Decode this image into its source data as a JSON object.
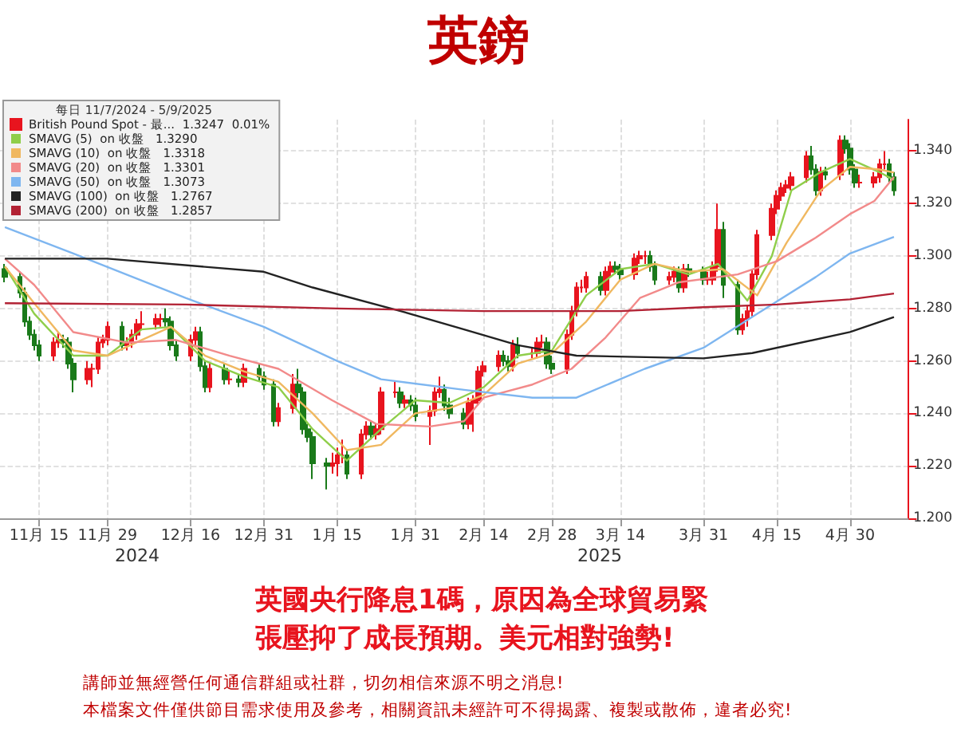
{
  "chart_data": {
    "type": "candlestick",
    "title": "英鎊",
    "legend_title": "每日 11/7/2024 - 5/9/2025",
    "legend": "top left",
    "grid": true,
    "marker": "none",
    "xlim": [
      "2024-11-07",
      "2025-05-12"
    ],
    "xticks": [
      {
        "value": "2024-11-15",
        "label": "11月 15"
      },
      {
        "value": "2024-11-29",
        "label": "11月 29"
      },
      {
        "value": "2024-12-16",
        "label": "12月 16"
      },
      {
        "value": "2024-12-31",
        "label": "12月 31"
      },
      {
        "value": "2025-01-15",
        "label": "1月 15"
      },
      {
        "value": "2025-01-31",
        "label": "1月 31"
      },
      {
        "value": "2025-02-14",
        "label": "2月 14"
      },
      {
        "value": "2025-02-28",
        "label": "2月 28"
      },
      {
        "value": "2025-03-14",
        "label": "3月 14"
      },
      {
        "value": "2025-03-31",
        "label": "3月 31"
      },
      {
        "value": "2025-04-15",
        "label": "4月 15"
      },
      {
        "value": "2025-04-30",
        "label": "4月 30"
      }
    ],
    "ylim": [
      1.2,
      1.352
    ],
    "yticks": [
      {
        "value": 1.2,
        "label": "1.200"
      },
      {
        "value": 1.22,
        "label": "1.220"
      },
      {
        "value": 1.24,
        "label": "1.240"
      },
      {
        "value": 1.26,
        "label": "1.260"
      },
      {
        "value": 1.28,
        "label": "1.280"
      },
      {
        "value": 1.3,
        "label": "1.300"
      },
      {
        "value": 1.32,
        "label": "1.320"
      },
      {
        "value": 1.34,
        "label": "1.340"
      }
    ],
    "annotations": [
      "2024",
      "2025",
      "英國央行降息1碼，原因為全球貿易緊",
      "張壓抑了成長預期。美元相對強勢!",
      "講師並無經營任何通信群組或社群，切勿相信來源不明之消息!",
      "本檔案文件僅供節目需求使用及參考，相關資訊未經許可不得揭露、複製或散佈，違者必究!"
    ],
    "series": [
      {
        "type": "candlestick",
        "name": "British Pound Spot - 最...  1.3247  0.01%",
        "color": "#e8141e",
        "colors": [
          "#1a7a1a",
          "#1a7a1a",
          "#1a7a1a",
          "#1a7a1a",
          "#1a7a1a",
          "#1a7a1a",
          "#e8141e",
          "#e8141e",
          "#1a7a1a",
          "#1a7a1a",
          "#1a7a1a",
          "#e8141e",
          "#e8141e",
          "#e8141e",
          "#e8141e",
          "#e8141e",
          "#1a7a1a",
          "#e8141e",
          "#e8141e",
          "#e8141e",
          "#e8141e",
          "#e8141e",
          "#e8141e",
          "#1a7a1a",
          "#1a7a1a",
          "#1a7a1a",
          "#e8141e",
          "#e8141e",
          "#1a7a1a",
          "#1a7a1a",
          "#e8141e",
          "#1a7a1a",
          "#e8141e",
          "#1a7a1a",
          "#e8141e",
          "#1a7a1a",
          "#1a7a1a",
          "#1a7a1a",
          "#e8141e",
          "#e8141e",
          "#1a7a1a",
          "#1a7a1a",
          "#1a7a1a",
          "#1a7a1a",
          "#1a7a1a",
          "#e8141e",
          "#e8141e",
          "#e8141e",
          "#1a7a1a",
          "#e8141e",
          "#e8141e",
          "#1a7a1a",
          "#e8141e",
          "#e8141e",
          "#e8141e",
          "#1a7a1a",
          "#e8141e",
          "#1a7a1a",
          "#1a7a1a",
          "#e8141e",
          "#e8141e",
          "#e8141e",
          "#1a7a1a",
          "#1a7a1a",
          "#1a7a1a",
          "#e8141e",
          "#e8141e",
          "#e8141e",
          "#e8141e",
          "#e8141e",
          "#1a7a1a",
          "#1a7a1a",
          "#e8141e",
          "#1a7a1a",
          "#e8141e",
          "#e8141e",
          "#e8141e",
          "#1a7a1a",
          "#1a7a1a",
          "#e8141e",
          "#e8141e",
          "#e8141e",
          "#e8141e",
          "#e8141e",
          "#1a7a1a",
          "#e8141e",
          "#e8141e",
          "#1a7a1a",
          "#1a7a1a",
          "#e8141e",
          "#e8141e",
          "#e8141e",
          "#1a7a1a",
          "#1a7a1a",
          "#e8141e",
          "#e8141e",
          "#1a7a1a",
          "#e8141e",
          "#1a7a1a",
          "#1a7a1a",
          "#e8141e",
          "#e8141e",
          "#e8141e",
          "#1a7a1a",
          "#1a7a1a",
          "#e8141e",
          "#e8141e",
          "#e8141e",
          "#e8141e",
          "#e8141e",
          "#e8141e",
          "#e8141e",
          "#e8141e",
          "#e8141e",
          "#e8141e",
          "#1a7a1a",
          "#1a7a1a",
          "#e8141e",
          "#1a7a1a",
          "#e8141e",
          "#1a7a1a",
          "#1a7a1a",
          "#1a7a1a",
          "#e8141e",
          "#e8141e",
          "#e8141e",
          "#e8141e",
          "#1a7a1a",
          "#1a7a1a"
        ],
        "x": [
          "2024-11-08",
          "2024-11-11",
          "2024-11-12",
          "2024-11-13",
          "2024-11-14",
          "2024-11-15",
          "2024-11-18",
          "2024-11-19",
          "2024-11-20",
          "2024-11-21",
          "2024-11-22",
          "2024-11-25",
          "2024-11-26",
          "2024-11-27",
          "2024-11-28",
          "2024-11-29",
          "2024-12-02",
          "2024-12-03",
          "2024-12-04",
          "2024-12-05",
          "2024-12-06",
          "2024-12-09",
          "2024-12-10",
          "2024-12-11",
          "2024-12-12",
          "2024-12-13",
          "2024-12-16",
          "2024-12-17",
          "2024-12-18",
          "2024-12-19",
          "2024-12-20",
          "2024-12-23",
          "2024-12-24",
          "2024-12-26",
          "2024-12-27",
          "2024-12-30",
          "2024-12-31",
          "2025-01-02",
          "2025-01-03",
          "2025-01-06",
          "2025-01-07",
          "2025-01-08",
          "2025-01-09",
          "2025-01-10",
          "2025-01-13",
          "2025-01-14",
          "2025-01-15",
          "2025-01-16",
          "2025-01-17",
          "2025-01-20",
          "2025-01-21",
          "2025-01-22",
          "2025-01-23",
          "2025-01-24",
          "2025-01-27",
          "2025-01-28",
          "2025-01-29",
          "2025-01-30",
          "2025-01-31",
          "2025-02-03",
          "2025-02-04",
          "2025-02-05",
          "2025-02-06",
          "2025-02-07",
          "2025-02-10",
          "2025-02-11",
          "2025-02-12",
          "2025-02-13",
          "2025-02-14",
          "2025-02-17",
          "2025-02-18",
          "2025-02-19",
          "2025-02-20",
          "2025-02-21",
          "2025-02-24",
          "2025-02-25",
          "2025-02-26",
          "2025-02-27",
          "2025-02-28",
          "2025-03-03",
          "2025-03-04",
          "2025-03-05",
          "2025-03-06",
          "2025-03-07",
          "2025-03-10",
          "2025-03-11",
          "2025-03-12",
          "2025-03-13",
          "2025-03-14",
          "2025-03-17",
          "2025-03-18",
          "2025-03-19",
          "2025-03-20",
          "2025-03-21",
          "2025-03-24",
          "2025-03-25",
          "2025-03-26",
          "2025-03-27",
          "2025-03-28",
          "2025-03-31",
          "2025-04-01",
          "2025-04-02",
          "2025-04-03",
          "2025-04-04",
          "2025-04-07",
          "2025-04-08",
          "2025-04-09",
          "2025-04-10",
          "2025-04-11",
          "2025-04-14",
          "2025-04-15",
          "2025-04-16",
          "2025-04-17",
          "2025-04-18",
          "2025-04-21",
          "2025-04-22",
          "2025-04-23",
          "2025-04-24",
          "2025-04-25",
          "2025-04-28",
          "2025-04-29",
          "2025-04-30",
          "2025-05-01",
          "2025-05-02",
          "2025-05-05",
          "2025-05-06",
          "2025-05-07",
          "2025-05-08",
          "2025-05-09"
        ],
        "ohlc": [
          [
            1.295,
            1.297,
            1.29,
            1.292
          ],
          [
            1.292,
            1.294,
            1.284,
            1.286
          ],
          [
            1.286,
            1.288,
            1.273,
            1.275
          ],
          [
            1.275,
            1.277,
            1.268,
            1.27
          ],
          [
            1.27,
            1.272,
            1.264,
            1.266
          ],
          [
            1.266,
            1.268,
            1.26,
            1.262
          ],
          [
            1.262,
            1.269,
            1.26,
            1.267
          ],
          [
            1.267,
            1.271,
            1.265,
            1.268
          ],
          [
            1.268,
            1.27,
            1.265,
            1.267
          ],
          [
            1.267,
            1.269,
            1.257,
            1.259
          ],
          [
            1.259,
            1.261,
            1.248,
            1.253
          ],
          [
            1.253,
            1.26,
            1.251,
            1.257
          ],
          [
            1.257,
            1.259,
            1.25,
            1.257
          ],
          [
            1.257,
            1.269,
            1.255,
            1.267
          ],
          [
            1.267,
            1.27,
            1.265,
            1.268
          ],
          [
            1.268,
            1.275,
            1.266,
            1.273
          ],
          [
            1.273,
            1.275,
            1.264,
            1.266
          ],
          [
            1.266,
            1.269,
            1.264,
            1.267
          ],
          [
            1.267,
            1.272,
            1.265,
            1.27
          ],
          [
            1.27,
            1.276,
            1.268,
            1.274
          ],
          [
            1.274,
            1.279,
            1.272,
            1.274
          ],
          [
            1.274,
            1.278,
            1.272,
            1.276
          ],
          [
            1.276,
            1.278,
            1.273,
            1.276
          ],
          [
            1.276,
            1.28,
            1.273,
            1.275
          ],
          [
            1.275,
            1.277,
            1.264,
            1.266
          ],
          [
            1.266,
            1.268,
            1.26,
            1.262
          ],
          [
            1.262,
            1.27,
            1.26,
            1.268
          ],
          [
            1.268,
            1.273,
            1.266,
            1.271
          ],
          [
            1.271,
            1.273,
            1.256,
            1.258
          ],
          [
            1.258,
            1.26,
            1.248,
            1.25
          ],
          [
            1.25,
            1.259,
            1.248,
            1.257
          ],
          [
            1.257,
            1.259,
            1.251,
            1.253
          ],
          [
            1.253,
            1.256,
            1.251,
            1.253
          ],
          [
            1.253,
            1.255,
            1.25,
            1.252
          ],
          [
            1.252,
            1.259,
            1.25,
            1.257
          ],
          [
            1.257,
            1.259,
            1.252,
            1.254
          ],
          [
            1.254,
            1.256,
            1.249,
            1.251
          ],
          [
            1.251,
            1.253,
            1.235,
            1.237
          ],
          [
            1.237,
            1.244,
            1.235,
            1.242
          ],
          [
            1.242,
            1.255,
            1.24,
            1.251
          ],
          [
            1.251,
            1.257,
            1.246,
            1.248
          ],
          [
            1.248,
            1.25,
            1.232,
            1.234
          ],
          [
            1.234,
            1.236,
            1.229,
            1.231
          ],
          [
            1.231,
            1.233,
            1.215,
            1.221
          ],
          [
            1.221,
            1.223,
            1.211,
            1.22
          ],
          [
            1.22,
            1.225,
            1.217,
            1.221
          ],
          [
            1.221,
            1.227,
            1.216,
            1.224
          ],
          [
            1.224,
            1.23,
            1.221,
            1.224
          ],
          [
            1.224,
            1.226,
            1.215,
            1.217
          ],
          [
            1.217,
            1.234,
            1.215,
            1.232
          ],
          [
            1.232,
            1.237,
            1.23,
            1.235
          ],
          [
            1.235,
            1.237,
            1.23,
            1.232
          ],
          [
            1.232,
            1.236,
            1.23,
            1.234
          ],
          [
            1.234,
            1.25,
            1.232,
            1.248
          ],
          [
            1.248,
            1.252,
            1.246,
            1.248
          ],
          [
            1.248,
            1.25,
            1.242,
            1.244
          ],
          [
            1.244,
            1.247,
            1.242,
            1.245
          ],
          [
            1.245,
            1.247,
            1.241,
            1.243
          ],
          [
            1.243,
            1.246,
            1.237,
            1.239
          ],
          [
            1.239,
            1.243,
            1.228,
            1.241
          ],
          [
            1.241,
            1.25,
            1.239,
            1.248
          ],
          [
            1.248,
            1.254,
            1.246,
            1.249
          ],
          [
            1.249,
            1.251,
            1.241,
            1.243
          ],
          [
            1.243,
            1.246,
            1.238,
            1.24
          ],
          [
            1.24,
            1.242,
            1.234,
            1.236
          ],
          [
            1.236,
            1.246,
            1.234,
            1.244
          ],
          [
            1.244,
            1.247,
            1.233,
            1.245
          ],
          [
            1.245,
            1.258,
            1.243,
            1.256
          ],
          [
            1.256,
            1.26,
            1.254,
            1.258
          ],
          [
            1.258,
            1.264,
            1.256,
            1.262
          ],
          [
            1.262,
            1.264,
            1.258,
            1.26
          ],
          [
            1.26,
            1.262,
            1.256,
            1.258
          ],
          [
            1.258,
            1.268,
            1.256,
            1.266
          ],
          [
            1.266,
            1.269,
            1.261,
            1.263
          ],
          [
            1.263,
            1.265,
            1.261,
            1.263
          ],
          [
            1.263,
            1.269,
            1.261,
            1.267
          ],
          [
            1.267,
            1.27,
            1.265,
            1.267
          ],
          [
            1.267,
            1.269,
            1.257,
            1.259
          ],
          [
            1.259,
            1.262,
            1.255,
            1.257
          ],
          [
            1.257,
            1.272,
            1.255,
            1.27
          ],
          [
            1.27,
            1.281,
            1.268,
            1.279
          ],
          [
            1.279,
            1.29,
            1.277,
            1.288
          ],
          [
            1.288,
            1.291,
            1.286,
            1.288
          ],
          [
            1.288,
            1.294,
            1.286,
            1.292
          ],
          [
            1.292,
            1.294,
            1.285,
            1.287
          ],
          [
            1.287,
            1.296,
            1.285,
            1.294
          ],
          [
            1.294,
            1.298,
            1.292,
            1.296
          ],
          [
            1.296,
            1.298,
            1.293,
            1.295
          ],
          [
            1.295,
            1.297,
            1.291,
            1.293
          ],
          [
            1.293,
            1.301,
            1.291,
            1.299
          ],
          [
            1.299,
            1.302,
            1.297,
            1.3
          ],
          [
            1.3,
            1.302,
            1.297,
            1.3
          ],
          [
            1.3,
            1.302,
            1.294,
            1.296
          ],
          [
            1.296,
            1.298,
            1.289,
            1.291
          ],
          [
            1.291,
            1.294,
            1.289,
            1.292
          ],
          [
            1.292,
            1.296,
            1.29,
            1.294
          ],
          [
            1.294,
            1.296,
            1.286,
            1.288
          ],
          [
            1.288,
            1.297,
            1.286,
            1.295
          ],
          [
            1.295,
            1.297,
            1.292,
            1.294
          ],
          [
            1.294,
            1.296,
            1.289,
            1.291
          ],
          [
            1.291,
            1.294,
            1.289,
            1.291
          ],
          [
            1.291,
            1.298,
            1.289,
            1.296
          ],
          [
            1.296,
            1.32,
            1.294,
            1.31
          ],
          [
            1.31,
            1.313,
            1.284,
            1.289
          ],
          [
            1.289,
            1.291,
            1.27,
            1.272
          ],
          [
            1.272,
            1.278,
            1.27,
            1.276
          ],
          [
            1.276,
            1.281,
            1.273,
            1.279
          ],
          [
            1.279,
            1.295,
            1.277,
            1.293
          ],
          [
            1.293,
            1.31,
            1.291,
            1.308
          ],
          [
            1.308,
            1.32,
            1.306,
            1.318
          ],
          [
            1.318,
            1.325,
            1.316,
            1.323
          ],
          [
            1.323,
            1.328,
            1.321,
            1.326
          ],
          [
            1.326,
            1.329,
            1.324,
            1.327
          ],
          [
            1.327,
            1.332,
            1.325,
            1.33
          ],
          [
            1.33,
            1.34,
            1.328,
            1.338
          ],
          [
            1.338,
            1.342,
            1.331,
            1.333
          ],
          [
            1.333,
            1.335,
            1.323,
            1.325
          ],
          [
            1.325,
            1.334,
            1.323,
            1.332
          ],
          [
            1.332,
            1.334,
            1.329,
            1.331
          ],
          [
            1.331,
            1.346,
            1.329,
            1.344
          ],
          [
            1.344,
            1.346,
            1.339,
            1.341
          ],
          [
            1.341,
            1.343,
            1.331,
            1.333
          ],
          [
            1.333,
            1.335,
            1.326,
            1.328
          ],
          [
            1.328,
            1.331,
            1.326,
            1.328
          ],
          [
            1.328,
            1.332,
            1.326,
            1.33
          ],
          [
            1.33,
            1.337,
            1.328,
            1.335
          ],
          [
            1.335,
            1.34,
            1.333,
            1.335
          ],
          [
            1.335,
            1.337,
            1.328,
            1.33
          ],
          [
            1.33,
            1.332,
            1.323,
            1.325
          ]
        ]
      },
      {
        "type": "line",
        "name": "SMAVG (5)  on 收盤   1.3290",
        "color": "#8fce4a",
        "x": [
          "2024-11-08",
          "2024-11-14",
          "2024-11-22",
          "2024-11-29",
          "2024-12-06",
          "2024-12-12",
          "2024-12-19",
          "2024-12-27",
          "2025-01-03",
          "2025-01-10",
          "2025-01-17",
          "2025-01-24",
          "2025-01-31",
          "2025-02-07",
          "2025-02-14",
          "2025-02-21",
          "2025-02-28",
          "2025-03-07",
          "2025-03-14",
          "2025-03-21",
          "2025-03-28",
          "2025-04-03",
          "2025-04-09",
          "2025-04-14",
          "2025-04-18",
          "2025-04-24",
          "2025-04-30",
          "2025-05-06",
          "2025-05-09"
        ],
        "values": [
          1.296,
          1.278,
          1.262,
          1.262,
          1.272,
          1.273,
          1.26,
          1.254,
          1.25,
          1.234,
          1.222,
          1.234,
          1.245,
          1.244,
          1.25,
          1.262,
          1.264,
          1.285,
          1.295,
          1.297,
          1.293,
          1.297,
          1.283,
          1.3,
          1.325,
          1.332,
          1.337,
          1.332,
          1.329
        ]
      },
      {
        "type": "line",
        "name": "SMAVG (10)  on 收盤   1.3318",
        "color": "#f0b860",
        "x": [
          "2024-11-08",
          "2024-11-14",
          "2024-11-22",
          "2024-11-29",
          "2024-12-06",
          "2024-12-12",
          "2024-12-19",
          "2024-12-27",
          "2025-01-03",
          "2025-01-10",
          "2025-01-17",
          "2025-01-24",
          "2025-01-31",
          "2025-02-07",
          "2025-02-14",
          "2025-02-21",
          "2025-02-28",
          "2025-03-07",
          "2025-03-14",
          "2025-03-21",
          "2025-03-28",
          "2025-04-04",
          "2025-04-11",
          "2025-04-17",
          "2025-04-24",
          "2025-04-30",
          "2025-05-06",
          "2025-05-09"
        ],
        "values": [
          1.296,
          1.282,
          1.264,
          1.262,
          1.268,
          1.273,
          1.262,
          1.256,
          1.252,
          1.24,
          1.226,
          1.228,
          1.24,
          1.242,
          1.247,
          1.259,
          1.263,
          1.275,
          1.291,
          1.297,
          1.294,
          1.295,
          1.285,
          1.305,
          1.325,
          1.334,
          1.333,
          1.3318
        ]
      },
      {
        "type": "line",
        "name": "SMAVG (20)  on 收盤   1.3301",
        "color": "#f28a8a",
        "x": [
          "2024-11-08",
          "2024-11-14",
          "2024-11-22",
          "2024-12-03",
          "2024-12-13",
          "2024-12-24",
          "2025-01-03",
          "2025-01-14",
          "2025-01-23",
          "2025-02-03",
          "2025-02-10",
          "2025-02-14",
          "2025-02-24",
          "2025-03-04",
          "2025-03-11",
          "2025-03-18",
          "2025-03-26",
          "2025-04-07",
          "2025-04-15",
          "2025-04-23",
          "2025-04-30",
          "2025-05-05",
          "2025-05-09"
        ],
        "values": [
          1.299,
          1.289,
          1.271,
          1.267,
          1.268,
          1.262,
          1.257,
          1.245,
          1.236,
          1.235,
          1.237,
          1.246,
          1.251,
          1.257,
          1.269,
          1.284,
          1.29,
          1.293,
          1.298,
          1.307,
          1.316,
          1.321,
          1.3301
        ]
      },
      {
        "type": "line",
        "name": "SMAVG (50)  on 收盤   1.3073",
        "color": "#7eb6f0",
        "x": [
          "2024-11-08",
          "2024-11-22",
          "2024-12-15",
          "2024-12-31",
          "2025-01-15",
          "2025-01-24",
          "2025-02-10",
          "2025-02-24",
          "2025-03-05",
          "2025-03-19",
          "2025-03-31",
          "2025-04-11",
          "2025-04-23",
          "2025-04-30",
          "2025-05-09"
        ],
        "values": [
          1.311,
          1.301,
          1.284,
          1.273,
          1.26,
          1.253,
          1.249,
          1.246,
          1.246,
          1.257,
          1.265,
          1.278,
          1.292,
          1.301,
          1.3073
        ]
      },
      {
        "type": "line",
        "name": "SMAVG (100)  on 收盤   1.2767",
        "color": "#222222",
        "x": [
          "2024-11-08",
          "2024-11-29",
          "2024-12-31",
          "2025-01-10",
          "2025-01-28",
          "2025-02-10",
          "2025-02-21",
          "2025-03-05",
          "2025-03-31",
          "2025-04-10",
          "2025-04-30",
          "2025-05-09"
        ],
        "values": [
          1.299,
          1.299,
          1.294,
          1.288,
          1.279,
          1.272,
          1.266,
          1.262,
          1.261,
          1.263,
          1.271,
          1.2767
        ]
      },
      {
        "type": "line",
        "name": "SMAVG (200)  on 收盤   1.2857",
        "color": "#b22234",
        "x": [
          "2024-11-08",
          "2024-12-15",
          "2025-01-15",
          "2025-02-14",
          "2025-03-14",
          "2025-03-31",
          "2025-04-15",
          "2025-04-30",
          "2025-05-09"
        ],
        "values": [
          1.282,
          1.2815,
          1.28,
          1.279,
          1.279,
          1.2805,
          1.2815,
          1.2835,
          1.2857
        ]
      }
    ]
  }
}
